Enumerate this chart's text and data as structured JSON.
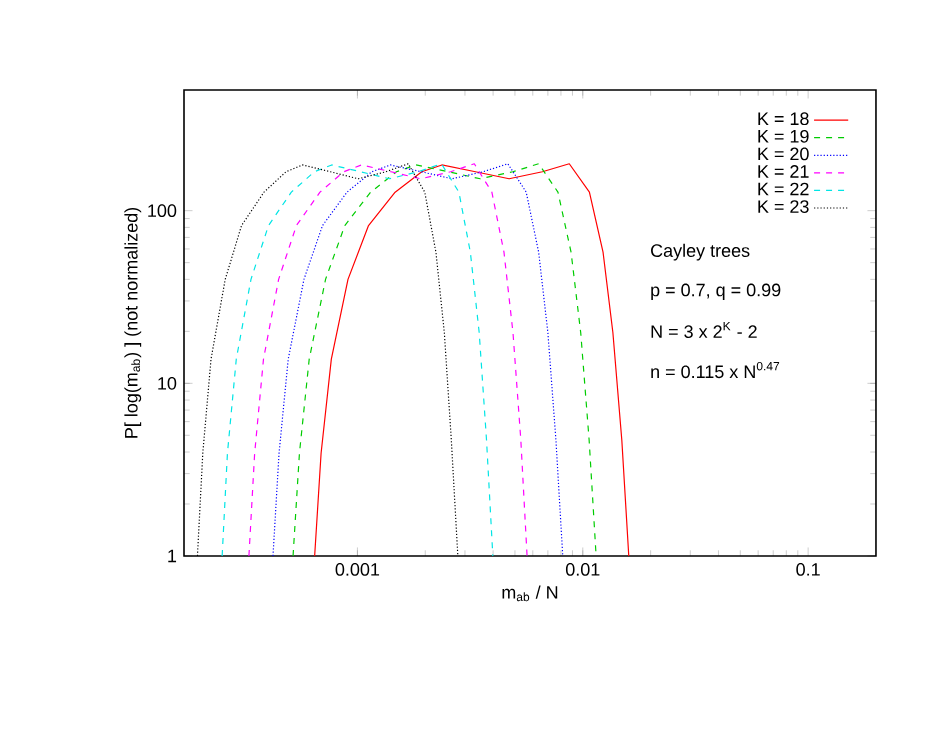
{
  "chart_data": {
    "type": "line",
    "xlabel": "m$_{ab}$ / N",
    "ylabel": "P[ log(m$_{ab}$) ] (not normalized)",
    "log": "xy",
    "xlim": [
      0.00017,
      0.2
    ],
    "ylim": [
      1,
      500
    ],
    "xticks": [
      0.001,
      0.01,
      0.1
    ],
    "yticks": [
      1,
      10,
      100
    ],
    "legend": "top right",
    "grid": false,
    "marker": "none",
    "annotations": [
      "Cayley trees",
      "p = 0.7, q = 0.99",
      "N = 3 x 2$^{K}$ - 2",
      "n = 0.115 x N$^{0.47}$"
    ],
    "series": [
      {
        "name": "K = 18",
        "color": "#ff0000",
        "line_style": "solid",
        "x": [
          0.000646,
          0.00069,
          0.000766,
          0.000908,
          0.00112,
          0.00147,
          0.00193,
          0.00237,
          0.00334,
          0.00471,
          0.00662,
          0.00871,
          0.0107,
          0.0123,
          0.0136,
          0.0149,
          0.016
        ],
        "values": [
          1,
          3.95,
          13.8,
          40,
          82,
          128,
          168,
          184,
          168,
          153,
          168,
          187,
          128,
          57.5,
          19.7,
          4.7,
          1
        ]
      },
      {
        "name": "K = 19",
        "color": "#00cc00",
        "line_style": "dashed",
        "x": [
          0.000518,
          0.000553,
          0.000611,
          0.000722,
          0.000879,
          0.001145,
          0.00149,
          0.00182,
          0.00253,
          0.00351,
          0.00489,
          0.00637,
          0.00776,
          0.00887,
          0.00979,
          0.01067,
          0.01146
        ],
        "values": [
          1,
          3.95,
          13.8,
          40,
          82,
          128,
          168,
          184,
          168,
          153,
          168,
          187,
          128,
          57.5,
          19.7,
          4.7,
          1
        ]
      },
      {
        "name": "K = 20",
        "color": "#0000ff",
        "line_style": "dotted",
        "x": [
          0.000422,
          0.000449,
          0.000493,
          0.000579,
          0.0007,
          0.000899,
          0.001159,
          0.0014,
          0.00192,
          0.00263,
          0.00361,
          0.00465,
          0.00561,
          0.00637,
          0.007,
          0.0076,
          0.00815
        ],
        "values": [
          1,
          3.95,
          13.8,
          40,
          82,
          128,
          168,
          184,
          168,
          153,
          168,
          187,
          128,
          57.5,
          19.7,
          4.7,
          1
        ]
      },
      {
        "name": "K = 21",
        "color": "#ff00ff",
        "line_style": "dashed",
        "x": [
          0.00033,
          0.00035,
          0.000383,
          0.000447,
          0.000536,
          0.000682,
          0.000869,
          0.001042,
          0.00141,
          0.00191,
          0.00259,
          0.0033,
          0.00395,
          0.00447,
          0.0049,
          0.00531,
          0.00566
        ],
        "values": [
          1,
          3.95,
          13.8,
          40,
          82,
          128,
          168,
          184,
          168,
          153,
          168,
          187,
          128,
          57.5,
          19.7,
          4.7,
          1
        ]
      },
      {
        "name": "K = 22",
        "color": "#00e5e5",
        "line_style": "dashed",
        "x": [
          0.000251,
          0.000265,
          0.00029,
          0.000337,
          0.000403,
          0.000509,
          0.000644,
          0.000769,
          0.001033,
          0.001387,
          0.00186,
          0.00236,
          0.00282,
          0.00317,
          0.00347,
          0.00374,
          0.00399
        ],
        "values": [
          1,
          3.95,
          13.8,
          40,
          82,
          128,
          168,
          184,
          168,
          153,
          168,
          187,
          128,
          57.5,
          19.7,
          4.7,
          1
        ]
      },
      {
        "name": "K = 23",
        "color": "#000000",
        "line_style": "dotted",
        "x": [
          0.000195,
          0.000206,
          0.000224,
          0.000259,
          0.000306,
          0.000385,
          0.000482,
          0.000571,
          0.000759,
          0.001007,
          0.001337,
          0.00168,
          0.00199,
          0.00223,
          0.00243,
          0.00261,
          0.00279
        ],
        "values": [
          1,
          3.95,
          13.8,
          40,
          82,
          128,
          168,
          184,
          168,
          153,
          168,
          187,
          128,
          57.5,
          19.7,
          4.7,
          1
        ]
      }
    ]
  }
}
